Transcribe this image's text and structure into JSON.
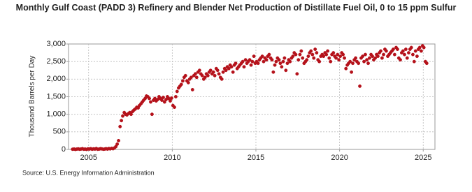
{
  "chart_data": {
    "type": "scatter",
    "title": "Monthly Gulf Coast (PADD 3) Refinery and Blender Net Production of Distillate Fuel Oil, 0 to 15 ppm Sulfur",
    "y_label": "Thousand Barrels per Day",
    "source": "Source: U.S. Energy Information Administration",
    "xlim": [
      2003.8,
      2025.7
    ],
    "xticks": [
      2005,
      2010,
      2015,
      2020,
      2025
    ],
    "ylim": [
      0,
      3000
    ],
    "yticks": [
      0,
      500,
      {
        "value": 1000,
        "label": "1,000"
      },
      {
        "value": 1500,
        "label": "1,500"
      },
      {
        "value": 2000,
        "label": "2,000"
      },
      {
        "value": 2500,
        "label": "2,500"
      },
      {
        "value": 3000,
        "label": "3,000"
      }
    ],
    "grid": true,
    "x": [
      2004.04,
      2004.13,
      2004.21,
      2004.29,
      2004.38,
      2004.46,
      2004.54,
      2004.63,
      2004.71,
      2004.79,
      2004.88,
      2004.96,
      2005.04,
      2005.13,
      2005.21,
      2005.29,
      2005.38,
      2005.46,
      2005.54,
      2005.63,
      2005.71,
      2005.79,
      2005.88,
      2005.96,
      2006.04,
      2006.13,
      2006.21,
      2006.29,
      2006.38,
      2006.46,
      2006.54,
      2006.63,
      2006.71,
      2006.79,
      2006.88,
      2006.96,
      2007.04,
      2007.13,
      2007.21,
      2007.29,
      2007.38,
      2007.46,
      2007.54,
      2007.63,
      2007.71,
      2007.79,
      2007.88,
      2007.96,
      2008.04,
      2008.13,
      2008.21,
      2008.29,
      2008.38,
      2008.46,
      2008.54,
      2008.63,
      2008.71,
      2008.79,
      2008.88,
      2008.96,
      2009.04,
      2009.13,
      2009.21,
      2009.29,
      2009.38,
      2009.46,
      2009.54,
      2009.63,
      2009.71,
      2009.79,
      2009.88,
      2009.96,
      2010.04,
      2010.13,
      2010.21,
      2010.29,
      2010.38,
      2010.46,
      2010.54,
      2010.63,
      2010.71,
      2010.79,
      2010.88,
      2010.96,
      2011.04,
      2011.13,
      2011.21,
      2011.29,
      2011.38,
      2011.46,
      2011.54,
      2011.63,
      2011.71,
      2011.79,
      2011.88,
      2011.96,
      2012.04,
      2012.13,
      2012.21,
      2012.29,
      2012.38,
      2012.46,
      2012.54,
      2012.63,
      2012.71,
      2012.79,
      2012.88,
      2012.96,
      2013.04,
      2013.13,
      2013.21,
      2013.29,
      2013.38,
      2013.46,
      2013.54,
      2013.63,
      2013.71,
      2013.79,
      2013.88,
      2013.96,
      2014.04,
      2014.13,
      2014.21,
      2014.29,
      2014.38,
      2014.46,
      2014.54,
      2014.63,
      2014.71,
      2014.79,
      2014.88,
      2014.96,
      2015.04,
      2015.13,
      2015.21,
      2015.29,
      2015.38,
      2015.46,
      2015.54,
      2015.63,
      2015.71,
      2015.79,
      2015.88,
      2015.96,
      2016.04,
      2016.13,
      2016.21,
      2016.29,
      2016.38,
      2016.46,
      2016.54,
      2016.63,
      2016.71,
      2016.79,
      2016.88,
      2016.96,
      2017.04,
      2017.13,
      2017.21,
      2017.29,
      2017.38,
      2017.46,
      2017.54,
      2017.63,
      2017.71,
      2017.79,
      2017.88,
      2017.96,
      2018.04,
      2018.13,
      2018.21,
      2018.29,
      2018.38,
      2018.46,
      2018.54,
      2018.63,
      2018.71,
      2018.79,
      2018.88,
      2018.96,
      2019.04,
      2019.13,
      2019.21,
      2019.29,
      2019.38,
      2019.46,
      2019.54,
      2019.63,
      2019.71,
      2019.79,
      2019.88,
      2019.96,
      2020.04,
      2020.13,
      2020.21,
      2020.29,
      2020.38,
      2020.46,
      2020.54,
      2020.63,
      2020.71,
      2020.79,
      2020.88,
      2020.96,
      2021.04,
      2021.13,
      2021.21,
      2021.29,
      2021.38,
      2021.46,
      2021.54,
      2021.63,
      2021.71,
      2021.79,
      2021.88,
      2021.96,
      2022.04,
      2022.13,
      2022.21,
      2022.29,
      2022.38,
      2022.46,
      2022.54,
      2022.63,
      2022.71,
      2022.79,
      2022.88,
      2022.96,
      2023.04,
      2023.13,
      2023.21,
      2023.29,
      2023.38,
      2023.46,
      2023.54,
      2023.63,
      2023.71,
      2023.79,
      2023.88,
      2023.96,
      2024.04,
      2024.13,
      2024.21,
      2024.29,
      2024.38,
      2024.46,
      2024.54,
      2024.63,
      2024.71,
      2024.79,
      2024.88,
      2024.96,
      2025.04,
      2025.13,
      2025.21
    ],
    "series": [
      {
        "color": "#b5121b",
        "values": [
          5,
          10,
          0,
          8,
          15,
          5,
          10,
          20,
          5,
          10,
          0,
          15,
          10,
          20,
          5,
          15,
          10,
          25,
          5,
          10,
          20,
          15,
          5,
          10,
          20,
          10,
          25,
          15,
          30,
          20,
          40,
          80,
          150,
          250,
          650,
          820,
          950,
          1050,
          1000,
          980,
          1020,
          1050,
          1000,
          1080,
          1120,
          1150,
          1200,
          1180,
          1250,
          1300,
          1350,
          1400,
          1450,
          1520,
          1500,
          1450,
          1350,
          1000,
          1400,
          1450,
          1380,
          1420,
          1500,
          1450,
          1400,
          1480,
          1350,
          1420,
          1500,
          1450,
          1380,
          1460,
          1250,
          1200,
          1500,
          1650,
          1750,
          1800,
          1850,
          1950,
          2050,
          2100,
          1950,
          1900,
          2000,
          2050,
          1700,
          2100,
          2150,
          2050,
          2200,
          2250,
          2150,
          2100,
          2000,
          2050,
          2150,
          2100,
          2200,
          2250,
          2150,
          2200,
          2100,
          2300,
          2250,
          2150,
          2050,
          2000,
          2200,
          2300,
          2250,
          2350,
          2300,
          2400,
          2350,
          2200,
          2400,
          2450,
          2300,
          2350,
          2400,
          2450,
          2500,
          2350,
          2550,
          2450,
          2500,
          2550,
          2400,
          2500,
          2650,
          2450,
          2500,
          2450,
          2550,
          2600,
          2650,
          2500,
          2600,
          2550,
          2650,
          2700,
          2600,
          2550,
          2200,
          2400,
          2500,
          2600,
          2550,
          2450,
          2350,
          2500,
          2600,
          2250,
          2450,
          2550,
          2500,
          2600,
          2650,
          2750,
          2700,
          2150,
          2550,
          2700,
          2800,
          2600,
          2450,
          2500,
          2550,
          2650,
          2750,
          2800,
          2700,
          2600,
          2850,
          2750,
          2550,
          2500,
          2650,
          2700,
          2650,
          2750,
          2700,
          2800,
          2600,
          2500,
          2700,
          2750,
          2650,
          2600,
          2700,
          2550,
          2650,
          2750,
          2700,
          2600,
          2300,
          2400,
          2450,
          2500,
          2200,
          2450,
          2550,
          2600,
          2500,
          2450,
          1800,
          2600,
          2650,
          2500,
          2700,
          2550,
          2450,
          2600,
          2700,
          2650,
          2550,
          2600,
          2700,
          2650,
          2750,
          2800,
          2600,
          2700,
          2850,
          2800,
          2650,
          2700,
          2750,
          2800,
          2850,
          2700,
          2900,
          2850,
          2600,
          2550,
          2750,
          2800,
          2700,
          2850,
          2600,
          2750,
          2850,
          2900,
          2700,
          2500,
          2800,
          2650,
          2850,
          2900,
          2800,
          2950,
          2900,
          2500,
          2450
        ]
      }
    ]
  }
}
